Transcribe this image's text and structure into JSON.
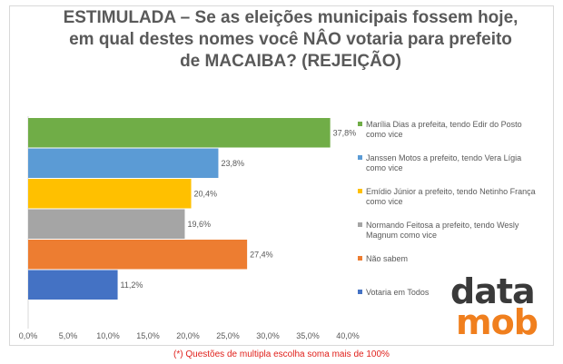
{
  "title": {
    "line1": "ESTIMULADA – Se as eleições municipais fossem hoje,",
    "line2": "em qual destes nomes você NÂO votaria para prefeito",
    "line3": "de MACAIBA? (REJEIÇÃO)"
  },
  "chart_data": {
    "type": "bar",
    "orientation": "horizontal",
    "categories": [
      [
        "Marília Dias a prefeita, tendo Edir do Posto",
        "como vice"
      ],
      [
        "Janssen Motos a prefeito, tendo Vera Lígia",
        "como vice"
      ],
      [
        "Emídio Júnior a prefeito, tendo Netinho França",
        "como vice"
      ],
      [
        "Normando Feitosa a prefeito, tendo Wesly",
        "Magnum como vice"
      ],
      [
        "Não sabem"
      ],
      [
        "Votaria em Todos"
      ]
    ],
    "values": [
      37.8,
      23.8,
      20.4,
      19.6,
      27.4,
      11.2
    ],
    "value_labels": [
      "37,8%",
      "23,8%",
      "20,4%",
      "19,6%",
      "27,4%",
      "11,2%"
    ],
    "colors": [
      "#70ad47",
      "#5b9bd5",
      "#ffc000",
      "#a5a5a5",
      "#ed7d31",
      "#4472c4"
    ],
    "xlim": [
      0,
      40
    ],
    "xticks": [
      0,
      5,
      10,
      15,
      20,
      25,
      30,
      35,
      40
    ],
    "xtick_labels": [
      "0,0%",
      "5,0%",
      "10,0%",
      "15,0%",
      "20,0%",
      "25,0%",
      "30,0%",
      "35,0%",
      "40,0%"
    ],
    "legend_position": "right"
  },
  "logo": {
    "line1": "data",
    "line2": "mob"
  },
  "footnote": "(*) Questões de multipla escolha soma mais de 100%"
}
